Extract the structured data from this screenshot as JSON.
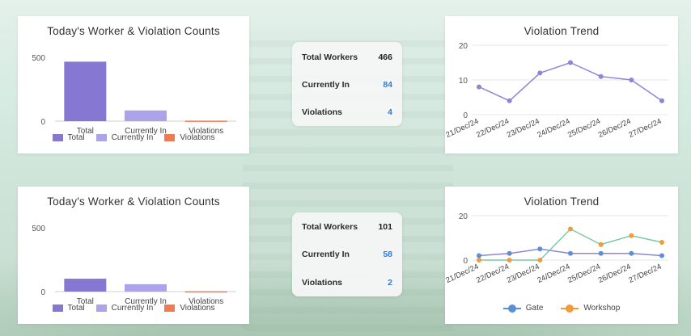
{
  "colors": {
    "total": "#8678d2",
    "currently_in": "#aba4ea",
    "violations": "#f07a52",
    "trend_line": "#8c86d6",
    "gate": "#5b8fd6",
    "workshop": "#f29b3c",
    "workshop_line": "#7cc9a0",
    "stat_blue": "#2a7de1"
  },
  "panels": [
    {
      "bar_chart": {
        "title": "Today's Worker & Violation Counts",
        "legend": [
          "Total",
          "Currently In",
          "Violations"
        ]
      },
      "stats": [
        {
          "label": "Total Workers",
          "value": "466",
          "highlight": false
        },
        {
          "label": "Currently In",
          "value": "84",
          "highlight": true
        },
        {
          "label": "Violations",
          "value": "4",
          "highlight": true
        }
      ],
      "trend": {
        "title": "Violation Trend"
      }
    },
    {
      "bar_chart": {
        "title": "Today's Worker & Violation Counts",
        "legend": [
          "Total",
          "Currently In",
          "Violations"
        ]
      },
      "stats": [
        {
          "label": "Total Workers",
          "value": "101",
          "highlight": false
        },
        {
          "label": "Currently In",
          "value": "58",
          "highlight": true
        },
        {
          "label": "Violations",
          "value": "2",
          "highlight": true
        }
      ],
      "trend": {
        "title": "Violation Trend",
        "legend": [
          "Gate",
          "Workshop"
        ]
      }
    }
  ],
  "chart_data": [
    {
      "type": "bar",
      "title": "Today's Worker & Violation Counts",
      "categories": [
        "Total",
        "Currently In",
        "Violations"
      ],
      "values": [
        466,
        84,
        4
      ],
      "yticks": [
        0,
        500
      ],
      "ylim": [
        0,
        620
      ],
      "legend_position": "bottom",
      "grid": false
    },
    {
      "type": "line",
      "title": "Violation Trend",
      "x": [
        "21/Dec/24",
        "22/Dec/24",
        "23/Dec/24",
        "24/Dec/24",
        "25/Dec/24",
        "26/Dec/24",
        "27/Dec/24"
      ],
      "series": [
        {
          "values": [
            8,
            4,
            12,
            15,
            11,
            10,
            4
          ]
        }
      ],
      "yticks": [
        0,
        10,
        20
      ],
      "ylim": [
        0,
        20
      ],
      "grid": true
    },
    {
      "type": "bar",
      "title": "Today's Worker & Violation Counts",
      "categories": [
        "Total",
        "Currently In",
        "Violations"
      ],
      "values": [
        101,
        58,
        2
      ],
      "yticks": [
        0,
        500
      ],
      "ylim": [
        0,
        620
      ],
      "legend_position": "bottom",
      "grid": false
    },
    {
      "type": "line",
      "title": "Violation Trend",
      "x": [
        "21/Dec/24",
        "22/Dec/24",
        "23/Dec/24",
        "24/Dec/24",
        "25/Dec/24",
        "26/Dec/24",
        "27/Dec/24"
      ],
      "series": [
        {
          "name": "Gate",
          "values": [
            2,
            3,
            5,
            3,
            3,
            3,
            2
          ]
        },
        {
          "name": "Workshop",
          "values": [
            0,
            0,
            0,
            14,
            7,
            11,
            8
          ]
        }
      ],
      "yticks": [
        0,
        20
      ],
      "ylim": [
        0,
        20
      ],
      "legend_position": "bottom",
      "grid": true
    }
  ]
}
